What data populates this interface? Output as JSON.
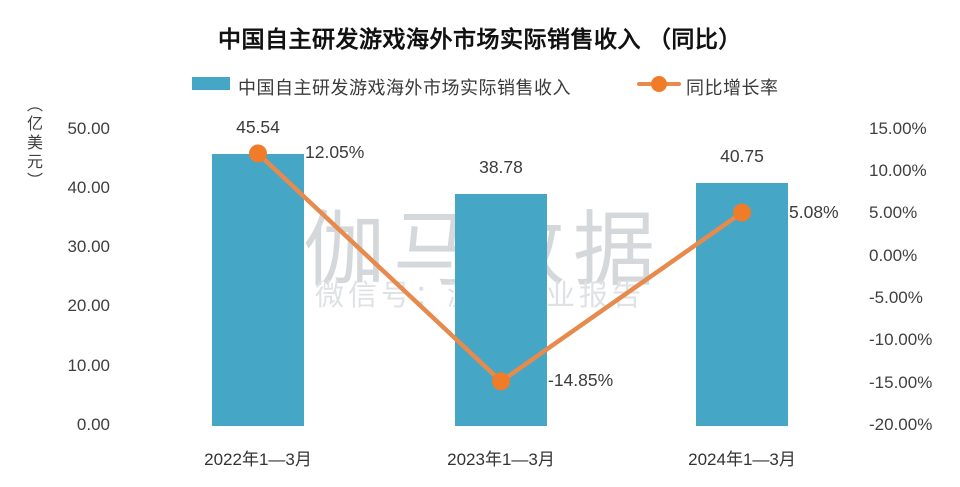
{
  "chart_data": {
    "type": "bar",
    "title": "中国自主研发游戏海外市场实际销售收入 （同比）",
    "categories": [
      "2022年1—3月",
      "2023年1—3月",
      "2024年1—3月"
    ],
    "series": [
      {
        "name": "中国自主研发游戏海外市场实际销售收入",
        "type": "bar",
        "axis": "left",
        "values": [
          45.54,
          38.78,
          40.75
        ],
        "value_labels": [
          "45.54",
          "38.78",
          "40.75"
        ],
        "color": "#45A6C5"
      },
      {
        "name": "同比增长率",
        "type": "line",
        "axis": "right",
        "values": [
          12.05,
          -14.85,
          5.08
        ],
        "value_labels": [
          "12.05%",
          "-14.85%",
          "5.08%"
        ],
        "color": "#E78A4D",
        "marker_color": "#F07B28"
      }
    ],
    "left_axis": {
      "unit": "（亿美元）",
      "ticks": [
        "50.00",
        "40.00",
        "30.00",
        "20.00",
        "10.00",
        "0.00"
      ],
      "min": 0,
      "max": 50
    },
    "right_axis": {
      "ticks": [
        "15.00%",
        "10.00%",
        "5.00%",
        "0.00%",
        "-5.00%",
        "-10.00%",
        "-15.00%",
        "-20.00%"
      ],
      "min": -20,
      "max": 15
    },
    "legend_position": "top",
    "grid": "off",
    "watermark": {
      "line1": "伽马数据",
      "line2": "微信号：游戏产业报告"
    }
  }
}
